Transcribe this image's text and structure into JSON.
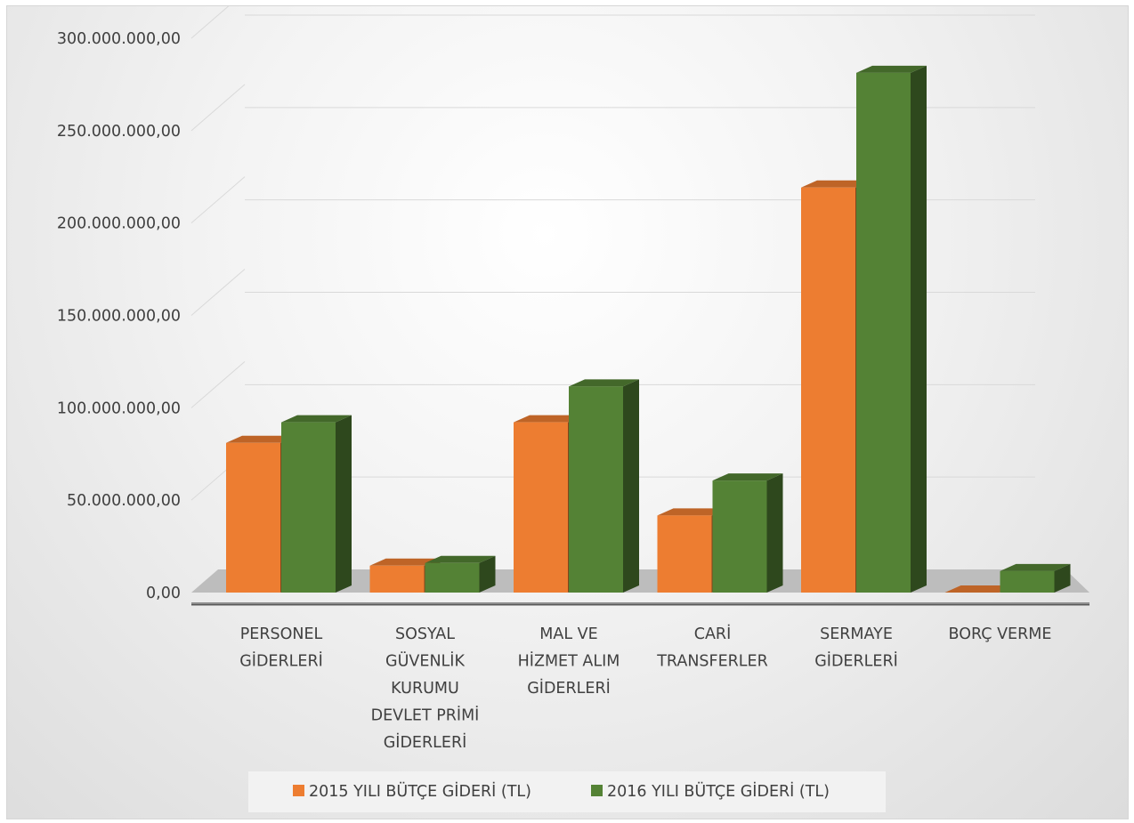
{
  "chart_data": {
    "type": "bar",
    "style": "3d-clustered-column",
    "title": "",
    "xlabel": "",
    "ylabel": "",
    "ylim": [
      0,
      300000000
    ],
    "yticks": [
      0,
      50000000,
      100000000,
      150000000,
      200000000,
      250000000,
      300000000
    ],
    "ytick_labels": [
      "0,00",
      "50.000.000,00",
      "100.000.000,00",
      "150.000.000,00",
      "200.000.000,00",
      "250.000.000,00",
      "300.000.000,00"
    ],
    "grid": true,
    "legend_position": "bottom",
    "categories": [
      [
        "PERSONEL",
        "GİDERLERİ"
      ],
      [
        "SOSYAL",
        "GÜVENLİK",
        "KURUMU",
        "DEVLET PRİMİ",
        "GİDERLERİ"
      ],
      [
        "MAL VE",
        "HİZMET ALIM",
        "GİDERLERİ"
      ],
      [
        "CARİ",
        "TRANSFERLER"
      ],
      [
        "SERMAYE",
        "GİDERLERİ"
      ],
      [
        "BORÇ VERME"
      ]
    ],
    "series": [
      {
        "name": "2015 YILI BÜTÇE GİDERİ (TL)",
        "color": "#ED7D31",
        "values": [
          83500000,
          15000000,
          95000000,
          43000000,
          226000000,
          0
        ]
      },
      {
        "name": "2016 YILI BÜTÇE GİDERİ (TL)",
        "color": "#548235",
        "values": [
          95000000,
          16500000,
          115000000,
          62500000,
          290000000,
          12000000
        ]
      }
    ]
  }
}
